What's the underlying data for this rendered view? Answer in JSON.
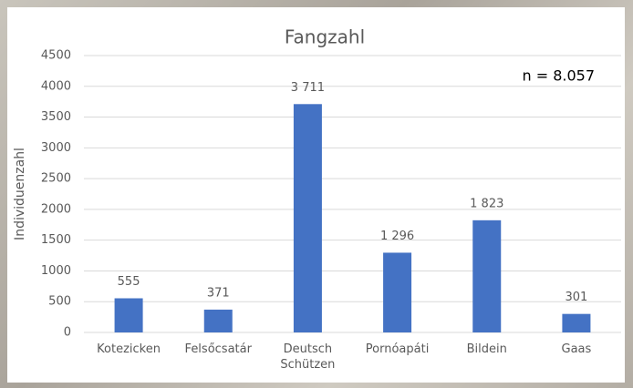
{
  "chart_data": {
    "type": "bar",
    "title": "Fangzahl",
    "y_label": "Individuenzahl",
    "annotation": "n = 8.057",
    "categories": [
      "Kotezicken",
      "Felsőcsatár",
      "Deutsch Schützen",
      "Pornóapáti",
      "Bildein",
      "Gaas"
    ],
    "values": [
      555,
      371,
      3711,
      1296,
      1823,
      301
    ],
    "value_labels": [
      "555",
      "371",
      "3 711",
      "1 296",
      "1 823",
      "301"
    ],
    "color": "#4472c4",
    "ylim": [
      0,
      4500
    ],
    "yticks": [
      0,
      500,
      1000,
      1500,
      2000,
      2500,
      3000,
      3500,
      4000,
      4500
    ],
    "grid": true
  }
}
